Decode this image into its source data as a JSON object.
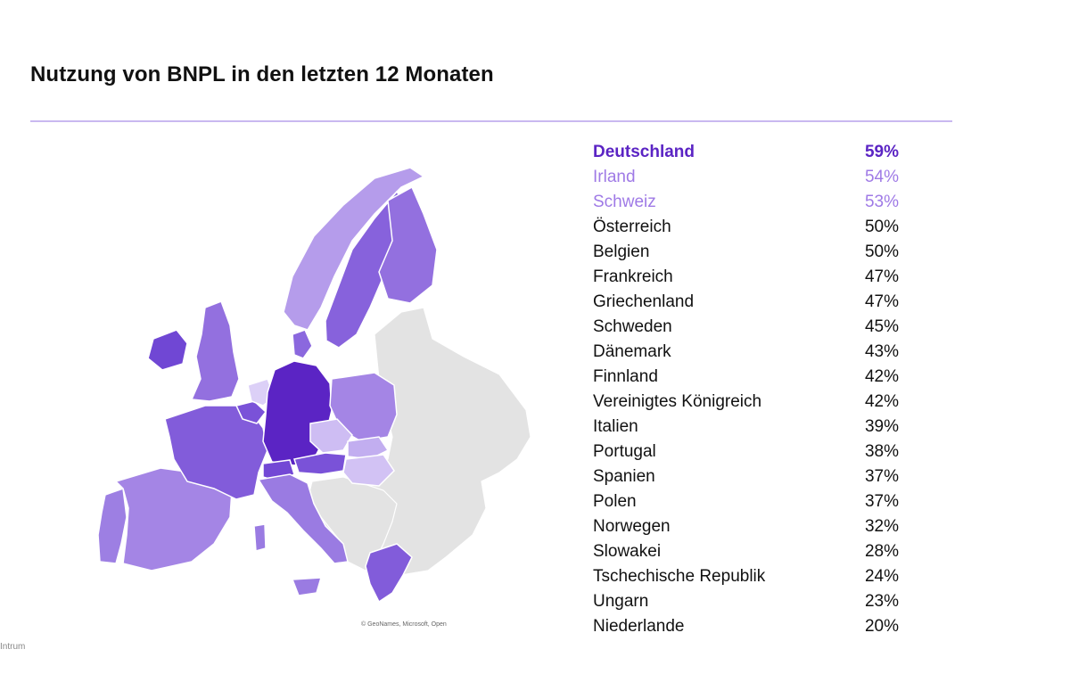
{
  "title": "Nutzung von BNPL in den letzten 12 Monaten",
  "attribution": "© GeoNames, Microsoft, Open",
  "brand": "Intrum",
  "colors": {
    "rule": "#c9b8f0",
    "highlight_top": "#5b24c4",
    "highlight_next": "#9f7ae6",
    "no_data": "#e3e3e3",
    "border": "#ffffff"
  },
  "countries": [
    {
      "name": "Deutschland",
      "value": "59%",
      "pct": 59,
      "color": "#5b24c4"
    },
    {
      "name": "Irland",
      "value": "54%",
      "pct": 54,
      "color": "#7047d4"
    },
    {
      "name": "Schweiz",
      "value": "53%",
      "pct": 53,
      "color": "#7348d5"
    },
    {
      "name": "Österreich",
      "value": "50%",
      "pct": 50,
      "color": "#7a52d8"
    },
    {
      "name": "Belgien",
      "value": "50%",
      "pct": 50,
      "color": "#7a52d8"
    },
    {
      "name": "Frankreich",
      "value": "47%",
      "pct": 47,
      "color": "#825cda"
    },
    {
      "name": "Griechenland",
      "value": "47%",
      "pct": 47,
      "color": "#825cda"
    },
    {
      "name": "Schweden",
      "value": "45%",
      "pct": 45,
      "color": "#8762dc"
    },
    {
      "name": "Dänemark",
      "value": "43%",
      "pct": 43,
      "color": "#8b68de"
    },
    {
      "name": "Finnland",
      "value": "42%",
      "pct": 42,
      "color": "#9370df"
    },
    {
      "name": "Vereinigtes Königreich",
      "value": "42%",
      "pct": 42,
      "color": "#9370df"
    },
    {
      "name": "Italien",
      "value": "39%",
      "pct": 39,
      "color": "#9a7be2"
    },
    {
      "name": "Portugal",
      "value": "38%",
      "pct": 38,
      "color": "#9d7fe3"
    },
    {
      "name": "Spanien",
      "value": "37%",
      "pct": 37,
      "color": "#a485e5"
    },
    {
      "name": "Polen",
      "value": "37%",
      "pct": 37,
      "color": "#a485e5"
    },
    {
      "name": "Norwegen",
      "value": "32%",
      "pct": 32,
      "color": "#b59ceb"
    },
    {
      "name": "Slowakei",
      "value": "28%",
      "pct": 28,
      "color": "#c2aef0"
    },
    {
      "name": "Tschechische Republik",
      "value": "24%",
      "pct": 24,
      "color": "#cebdf3"
    },
    {
      "name": "Ungarn",
      "value": "23%",
      "pct": 23,
      "color": "#d2c2f4"
    },
    {
      "name": "Niederlande",
      "value": "20%",
      "pct": 20,
      "color": "#dcd0f7"
    }
  ]
}
